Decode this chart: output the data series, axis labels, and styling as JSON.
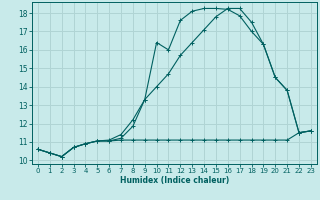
{
  "xlabel": "Humidex (Indice chaleur)",
  "bg_color": "#c8eaea",
  "grid_color": "#b0d4d4",
  "line_color": "#006060",
  "xlim": [
    -0.5,
    23.5
  ],
  "ylim": [
    9.8,
    18.6
  ],
  "yticks": [
    10,
    11,
    12,
    13,
    14,
    15,
    16,
    17,
    18
  ],
  "xticks": [
    0,
    1,
    2,
    3,
    4,
    5,
    6,
    7,
    8,
    9,
    10,
    11,
    12,
    13,
    14,
    15,
    16,
    17,
    18,
    19,
    20,
    21,
    22,
    23
  ],
  "line1_x": [
    0,
    1,
    2,
    3,
    4,
    5,
    6,
    7,
    8,
    9,
    10,
    11,
    12,
    13,
    14,
    15,
    16,
    17,
    18,
    19,
    20,
    21,
    22,
    23
  ],
  "line1_y": [
    10.6,
    10.4,
    10.2,
    10.7,
    10.9,
    11.05,
    11.05,
    11.1,
    11.1,
    11.1,
    11.1,
    11.1,
    11.1,
    11.1,
    11.1,
    11.1,
    11.1,
    11.1,
    11.1,
    11.1,
    11.1,
    11.1,
    11.5,
    11.6
  ],
  "line2_x": [
    0,
    1,
    2,
    3,
    4,
    5,
    6,
    7,
    8,
    9,
    10,
    11,
    12,
    13,
    14,
    15,
    16,
    17,
    18,
    19,
    20,
    21,
    22,
    23
  ],
  "line2_y": [
    10.6,
    10.4,
    10.2,
    10.7,
    10.9,
    11.05,
    11.05,
    11.2,
    11.85,
    13.3,
    16.4,
    16.0,
    17.6,
    18.1,
    18.25,
    18.25,
    18.2,
    17.85,
    17.0,
    16.3,
    14.5,
    13.8,
    11.5,
    11.6
  ],
  "line3_x": [
    0,
    1,
    2,
    3,
    4,
    5,
    6,
    7,
    8,
    9,
    10,
    11,
    12,
    13,
    14,
    15,
    16,
    17,
    18,
    19,
    20,
    21,
    22,
    23
  ],
  "line3_y": [
    10.6,
    10.4,
    10.2,
    10.7,
    10.9,
    11.05,
    11.1,
    11.4,
    12.2,
    13.3,
    14.0,
    14.7,
    15.7,
    16.4,
    17.1,
    17.8,
    18.25,
    18.25,
    17.5,
    16.3,
    14.5,
    13.8,
    11.5,
    11.6
  ]
}
